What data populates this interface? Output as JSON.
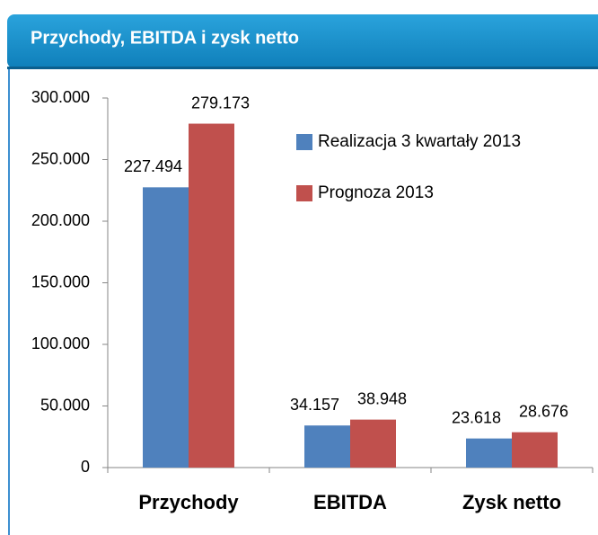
{
  "header": {
    "title": "Przychody, EBITDA i zysk netto"
  },
  "chart_data": {
    "type": "bar",
    "categories": [
      "Przychody",
      "EBITDA",
      "Zysk netto"
    ],
    "series": [
      {
        "name": "Realizacja 3 kwartały 2013",
        "color": "#4f81bd",
        "values": [
          227494,
          34157,
          23618
        ],
        "value_labels": [
          "227.494",
          "34.157",
          "23.618"
        ]
      },
      {
        "name": "Prognoza 2013",
        "color": "#c0504d",
        "values": [
          279173,
          38948,
          28676
        ],
        "value_labels": [
          "279.173",
          "38.948",
          "28.676"
        ]
      }
    ],
    "ylim": [
      0,
      300000
    ],
    "yticks": [
      0,
      {
        "value": 50000,
        "label": "50.000"
      },
      {
        "value": 100000,
        "label": "100.000"
      },
      {
        "value": 150000,
        "label": "150.000"
      },
      {
        "value": 200000,
        "label": "200.000"
      },
      {
        "value": 250000,
        "label": "250.000"
      },
      {
        "value": 300000,
        "label": "300.000"
      }
    ],
    "legend": "top-right",
    "grid": false
  }
}
